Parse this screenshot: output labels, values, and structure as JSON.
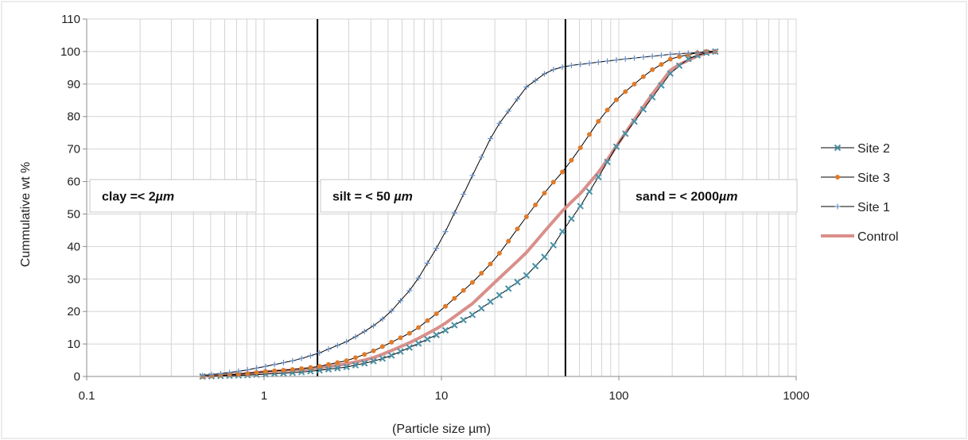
{
  "chart_data": {
    "type": "line",
    "x_scale": "log",
    "xlim": [
      0.1,
      1000
    ],
    "ylim": [
      0,
      110
    ],
    "y_ticks": [
      "0",
      "10",
      "20",
      "30",
      "40",
      "50",
      "60",
      "70",
      "80",
      "90",
      "100",
      "110"
    ],
    "x_ticks": [
      "0.1",
      "1",
      "10",
      "100",
      "1000"
    ],
    "xlabel": "(Particle size µm)",
    "ylabel": "Cummulative wt %",
    "grid": true,
    "legend_position": "right",
    "reference_lines": [
      2,
      50
    ],
    "zone_labels": [
      {
        "text": "clay =< 2",
        "unit": "µm"
      },
      {
        "text": "silt = < 50 ",
        "unit": "µm"
      },
      {
        "text": "sand = < 2000",
        "unit": "µm"
      }
    ],
    "series": [
      {
        "name": "Site 2",
        "color": "#4a90a4",
        "marker": "x",
        "points": [
          [
            0.45,
            0
          ],
          [
            0.6,
            0.2
          ],
          [
            0.8,
            0.4
          ],
          [
            1,
            0.7
          ],
          [
            1.5,
            1.2
          ],
          [
            2,
            1.8
          ],
          [
            3,
            3
          ],
          [
            4,
            4.5
          ],
          [
            5,
            6
          ],
          [
            7,
            9.5
          ],
          [
            10,
            13.5
          ],
          [
            15,
            19
          ],
          [
            20,
            24
          ],
          [
            30,
            31
          ],
          [
            40,
            38
          ],
          [
            50,
            46
          ],
          [
            60,
            52
          ],
          [
            80,
            63
          ],
          [
            100,
            72
          ],
          [
            150,
            85
          ],
          [
            200,
            94
          ],
          [
            250,
            98
          ],
          [
            300,
            99.5
          ],
          [
            350,
            100
          ]
        ]
      },
      {
        "name": "Site 3",
        "color": "#e07b2a",
        "marker": "circle",
        "points": [
          [
            0.45,
            0
          ],
          [
            0.6,
            0.4
          ],
          [
            0.8,
            0.9
          ],
          [
            1,
            1.5
          ],
          [
            1.5,
            2.2
          ],
          [
            2,
            3
          ],
          [
            3,
            5
          ],
          [
            4,
            7.5
          ],
          [
            5,
            10
          ],
          [
            7,
            14
          ],
          [
            10,
            20.5
          ],
          [
            15,
            29
          ],
          [
            20,
            36
          ],
          [
            30,
            49
          ],
          [
            40,
            58
          ],
          [
            50,
            64
          ],
          [
            60,
            70
          ],
          [
            80,
            80
          ],
          [
            100,
            86
          ],
          [
            150,
            94
          ],
          [
            200,
            98
          ],
          [
            300,
            100
          ],
          [
            350,
            100
          ]
        ]
      },
      {
        "name": "Site 1",
        "color": "#6b8fc4",
        "marker": "plus",
        "points": [
          [
            0.45,
            0.3
          ],
          [
            0.6,
            1
          ],
          [
            0.8,
            2
          ],
          [
            1,
            3
          ],
          [
            1.5,
            5
          ],
          [
            2,
            7
          ],
          [
            3,
            11
          ],
          [
            4,
            15
          ],
          [
            5,
            19
          ],
          [
            7,
            28
          ],
          [
            10,
            42
          ],
          [
            15,
            62
          ],
          [
            20,
            76
          ],
          [
            30,
            89
          ],
          [
            40,
            94
          ],
          [
            50,
            95.5
          ],
          [
            100,
            97.5
          ],
          [
            200,
            99.2
          ],
          [
            350,
            100
          ]
        ]
      },
      {
        "name": "Control",
        "color": "#d98f8a",
        "marker": "line",
        "points": [
          [
            0.45,
            0.1
          ],
          [
            0.6,
            0.4
          ],
          [
            0.8,
            0.9
          ],
          [
            1,
            1.4
          ],
          [
            1.5,
            2
          ],
          [
            2,
            2.5
          ],
          [
            3,
            4
          ],
          [
            4,
            5.5
          ],
          [
            5,
            7.5
          ],
          [
            7,
            11
          ],
          [
            10,
            15.5
          ],
          [
            15,
            22.5
          ],
          [
            20,
            29
          ],
          [
            30,
            38
          ],
          [
            40,
            46
          ],
          [
            50,
            52
          ],
          [
            60,
            56
          ],
          [
            80,
            64
          ],
          [
            100,
            72
          ],
          [
            150,
            86
          ],
          [
            200,
            95
          ],
          [
            300,
            99.5
          ],
          [
            350,
            100
          ]
        ]
      }
    ]
  }
}
